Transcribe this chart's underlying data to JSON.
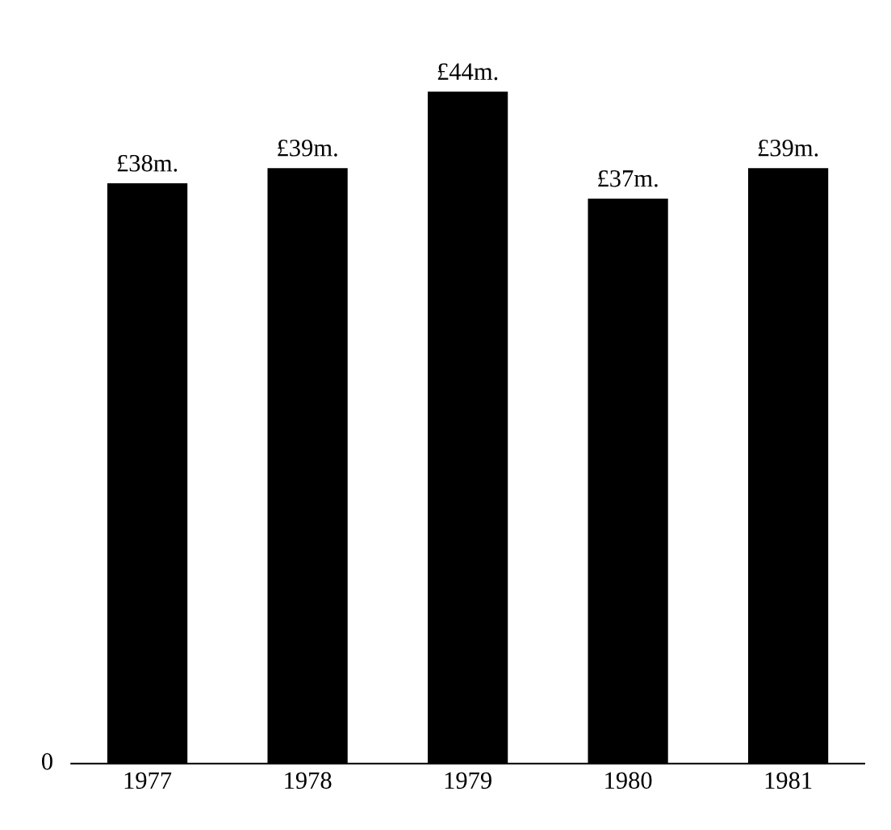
{
  "chart_data": {
    "type": "bar",
    "categories": [
      "1977",
      "1978",
      "1979",
      "1980",
      "1981"
    ],
    "values": [
      38,
      39,
      44,
      37,
      39
    ],
    "value_labels": [
      "£38m.",
      "£39m.",
      "£44m.",
      "£37m.",
      "£39m."
    ],
    "color": "#000000",
    "annotations": [
      "0"
    ],
    "grid": false,
    "legend": false
  }
}
